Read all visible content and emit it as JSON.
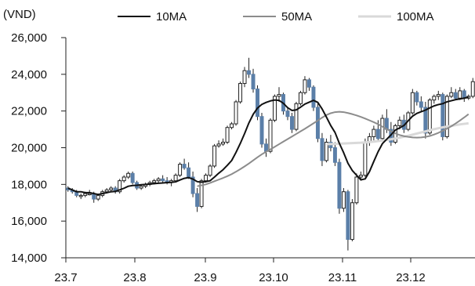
{
  "chart_data": {
    "type": "candlestick",
    "title": "",
    "ylabel": "(VND)",
    "xlabel": "",
    "ylim": [
      14000,
      26000
    ],
    "yticks": [
      14000,
      16000,
      18000,
      20000,
      22000,
      24000,
      26000
    ],
    "ytick_labels": [
      "14,000",
      "16,000",
      "18,000",
      "20,000",
      "22,000",
      "24,000",
      "26,000"
    ],
    "xtick_labels": [
      "23.7",
      "23.8",
      "23.9",
      "23.10",
      "23.11",
      "23.12"
    ],
    "legend": {
      "position": "top",
      "entries": [
        {
          "label": "10MA",
          "color": "#111111"
        },
        {
          "label": "50MA",
          "color": "#8c8c8c"
        },
        {
          "label": "100MA",
          "color": "#d9d9d9"
        }
      ]
    },
    "colors": {
      "up_candle": "#ffffff",
      "down_candle": "#5b7fa8",
      "candle_edge": "#222222"
    },
    "ohlc": [
      [
        17800,
        17900,
        17600,
        17700
      ],
      [
        17700,
        17800,
        17500,
        17600
      ],
      [
        17600,
        17700,
        17300,
        17400
      ],
      [
        17400,
        17500,
        17200,
        17400
      ],
      [
        17400,
        17600,
        17300,
        17500
      ],
      [
        17500,
        17700,
        17400,
        17500
      ],
      [
        17500,
        17600,
        17000,
        17200
      ],
      [
        17200,
        17500,
        17100,
        17400
      ],
      [
        17400,
        17700,
        17300,
        17600
      ],
      [
        17600,
        17800,
        17500,
        17700
      ],
      [
        17700,
        17900,
        17600,
        17800
      ],
      [
        17800,
        17900,
        17500,
        17600
      ],
      [
        17600,
        18300,
        17500,
        18200
      ],
      [
        18200,
        18500,
        18100,
        18400
      ],
      [
        18400,
        18700,
        18300,
        18600
      ],
      [
        18600,
        18700,
        18000,
        18100
      ],
      [
        18100,
        18200,
        17700,
        17800
      ],
      [
        17800,
        18000,
        17700,
        17900
      ],
      [
        17900,
        18100,
        17800,
        18000
      ],
      [
        18000,
        18200,
        17900,
        18100
      ],
      [
        18100,
        18300,
        18000,
        18200
      ],
      [
        18200,
        18400,
        18100,
        18300
      ],
      [
        18300,
        18500,
        18100,
        18200
      ],
      [
        18200,
        18400,
        18000,
        18100
      ],
      [
        18100,
        18300,
        17900,
        18200
      ],
      [
        18200,
        18600,
        18100,
        18500
      ],
      [
        18500,
        19200,
        18400,
        19100
      ],
      [
        19100,
        19400,
        18800,
        18900
      ],
      [
        18900,
        19200,
        18300,
        18400
      ],
      [
        18400,
        18700,
        17300,
        17500
      ],
      [
        17500,
        17800,
        16500,
        16800
      ],
      [
        16800,
        18300,
        16700,
        18200
      ],
      [
        18200,
        18600,
        18100,
        18500
      ],
      [
        18500,
        19100,
        18400,
        19000
      ],
      [
        19000,
        20200,
        18900,
        20100
      ],
      [
        20100,
        20400,
        20000,
        20200
      ],
      [
        20200,
        20500,
        20100,
        20300
      ],
      [
        20300,
        21200,
        20200,
        21100
      ],
      [
        21100,
        21400,
        21000,
        21300
      ],
      [
        21300,
        22600,
        21200,
        22500
      ],
      [
        22500,
        23600,
        22400,
        23500
      ],
      [
        23500,
        24400,
        23300,
        24200
      ],
      [
        24200,
        24900,
        23800,
        24000
      ],
      [
        24000,
        24300,
        23000,
        23200
      ],
      [
        23200,
        23400,
        21500,
        21700
      ],
      [
        21700,
        21900,
        20000,
        20200
      ],
      [
        20200,
        20500,
        19500,
        19800
      ],
      [
        19800,
        21600,
        19700,
        21500
      ],
      [
        21500,
        22900,
        21400,
        22800
      ],
      [
        22800,
        23300,
        22500,
        22900
      ],
      [
        22900,
        23000,
        21800,
        22000
      ],
      [
        22000,
        22200,
        21500,
        21700
      ],
      [
        21700,
        21900,
        20800,
        21000
      ],
      [
        21000,
        22500,
        20900,
        22400
      ],
      [
        22400,
        23100,
        22300,
        23000
      ],
      [
        23000,
        23900,
        22900,
        23700
      ],
      [
        23700,
        23800,
        23100,
        23300
      ],
      [
        23300,
        23400,
        22000,
        22200
      ],
      [
        22200,
        22400,
        20300,
        20500
      ],
      [
        20500,
        20800,
        19000,
        19300
      ],
      [
        19300,
        20500,
        19200,
        20300
      ],
      [
        20300,
        20700,
        19800,
        20000
      ],
      [
        20000,
        20300,
        19000,
        19200
      ],
      [
        19200,
        19400,
        16400,
        16700
      ],
      [
        16700,
        17800,
        16500,
        17600
      ],
      [
        17600,
        17700,
        14400,
        15000
      ],
      [
        15000,
        17200,
        14900,
        17000
      ],
      [
        17000,
        18600,
        16900,
        18400
      ],
      [
        18400,
        18700,
        18200,
        18500
      ],
      [
        18500,
        20500,
        18400,
        20300
      ],
      [
        20300,
        20800,
        20100,
        20600
      ],
      [
        20600,
        21200,
        20400,
        21000
      ],
      [
        21000,
        21500,
        20300,
        20500
      ],
      [
        20500,
        21800,
        20400,
        21600
      ],
      [
        21600,
        22100,
        20800,
        21000
      ],
      [
        21000,
        21400,
        20100,
        20300
      ],
      [
        20300,
        21300,
        20200,
        21200
      ],
      [
        21200,
        21700,
        21000,
        21500
      ],
      [
        21500,
        21800,
        20800,
        21000
      ],
      [
        21000,
        22000,
        20900,
        21900
      ],
      [
        21900,
        23200,
        21800,
        23000
      ],
      [
        23000,
        23100,
        22300,
        22500
      ],
      [
        22500,
        22800,
        22000,
        22200
      ],
      [
        22200,
        22500,
        20500,
        20800
      ],
      [
        20800,
        22700,
        20700,
        22600
      ],
      [
        22600,
        22900,
        22400,
        22800
      ],
      [
        22800,
        23100,
        22600,
        22900
      ],
      [
        22900,
        23000,
        20400,
        20600
      ],
      [
        20600,
        22900,
        20500,
        22800
      ],
      [
        22800,
        23300,
        22700,
        23000
      ],
      [
        23000,
        23200,
        22600,
        22700
      ],
      [
        22700,
        23300,
        22600,
        23100
      ],
      [
        23100,
        23200,
        22500,
        22700
      ],
      [
        22700,
        22900,
        22600,
        22800
      ],
      [
        22800,
        23800,
        22700,
        23600
      ]
    ],
    "series": [
      {
        "name": "10MA",
        "values": [
          17800,
          17700,
          17600,
          17600,
          17550,
          17550,
          17500,
          17450,
          17500,
          17550,
          17600,
          17620,
          17700,
          17790,
          17900,
          17940,
          17950,
          17980,
          18000,
          18020,
          18040,
          18060,
          18080,
          18100,
          18110,
          18140,
          18240,
          18330,
          18370,
          18290,
          18150,
          18120,
          18150,
          18200,
          18400,
          18610,
          18800,
          19040,
          19300,
          19740,
          20230,
          20770,
          21350,
          21820,
          22160,
          22360,
          22470,
          22550,
          22600,
          22580,
          22420,
          22180,
          22030,
          22060,
          22210,
          22380,
          22480,
          22580,
          22470,
          22110,
          21670,
          21210,
          20830,
          20240,
          19730,
          19150,
          18760,
          18500,
          18250,
          18300,
          18700,
          19250,
          19780,
          20220,
          20460,
          20700,
          20960,
          21080,
          21210,
          21470,
          21720,
          21870,
          21960,
          22050,
          22170,
          22280,
          22350,
          22400,
          22500,
          22560,
          22620,
          22660,
          22700,
          22760
        ]
      },
      {
        "name": "50MA",
        "values": [
          null,
          null,
          null,
          null,
          null,
          null,
          null,
          null,
          null,
          null,
          null,
          null,
          null,
          null,
          null,
          null,
          null,
          null,
          null,
          null,
          null,
          null,
          null,
          null,
          null,
          null,
          null,
          null,
          null,
          null,
          17900,
          17950,
          18000,
          18080,
          18170,
          18260,
          18350,
          18450,
          18560,
          18690,
          18830,
          18980,
          19140,
          19310,
          19480,
          19640,
          19780,
          19910,
          20050,
          20190,
          20330,
          20470,
          20610,
          20750,
          20890,
          21030,
          21180,
          21330,
          21480,
          21640,
          21780,
          21880,
          21940,
          21960,
          21940,
          21890,
          21830,
          21760,
          21680,
          21590,
          21490,
          21390,
          21280,
          21150,
          21020,
          20890,
          20780,
          20690,
          20630,
          20590,
          20560,
          20550,
          20560,
          20590,
          20640,
          20720,
          20810,
          20920,
          21040,
          21170,
          21320,
          21480,
          21650,
          21830
        ]
      },
      {
        "name": "100MA",
        "values": [
          null,
          null,
          null,
          null,
          null,
          null,
          null,
          null,
          null,
          null,
          null,
          null,
          null,
          null,
          null,
          null,
          null,
          null,
          null,
          null,
          null,
          null,
          null,
          null,
          null,
          null,
          null,
          null,
          null,
          null,
          null,
          null,
          null,
          null,
          null,
          null,
          null,
          null,
          null,
          null,
          null,
          null,
          null,
          null,
          null,
          null,
          null,
          null,
          null,
          null,
          null,
          null,
          null,
          null,
          null,
          null,
          null,
          null,
          null,
          null,
          20200,
          20200,
          20210,
          20220,
          20230,
          20240,
          20250,
          20260,
          20270,
          20290,
          20310,
          20330,
          20360,
          20390,
          20420,
          20460,
          20500,
          20550,
          20600,
          20650,
          20710,
          20770,
          20830,
          20890,
          20950,
          21010,
          21060,
          21110,
          21150,
          21190,
          21230,
          21270,
          21300,
          21330
        ]
      }
    ]
  }
}
